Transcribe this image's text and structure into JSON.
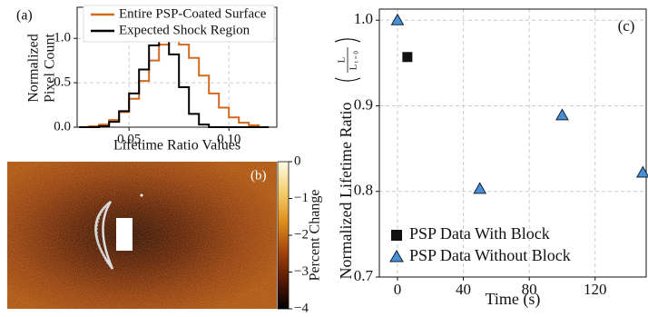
{
  "chart_data": [
    {
      "type": "line",
      "step": true,
      "panel_label": "(a)",
      "xlabel": "Lifetime Ratio Values",
      "ylabel": [
        "Normalized",
        "Pixel Count"
      ],
      "x": [
        0.025,
        0.03,
        0.035,
        0.04,
        0.045,
        0.05,
        0.055,
        0.06,
        0.065,
        0.07,
        0.075,
        0.08,
        0.085,
        0.09,
        0.095,
        0.1,
        0.105,
        0.11,
        0.115,
        0.12
      ],
      "series": [
        {
          "name": "Entire PSP-Coated Surface",
          "color": "#d2691e",
          "values": [
            0,
            0.01,
            0.03,
            0.08,
            0.17,
            0.32,
            0.52,
            0.75,
            0.93,
            1.0,
            0.93,
            0.78,
            0.58,
            0.38,
            0.22,
            0.11,
            0.05,
            0.02,
            0,
            0
          ]
        },
        {
          "name": "Expected Shock Region",
          "color": "#000000",
          "values": [
            0,
            0,
            0.01,
            0.06,
            0.18,
            0.38,
            0.65,
            0.92,
            1.0,
            0.82,
            0.45,
            0.15,
            0.03,
            0,
            0,
            0,
            0,
            0,
            0,
            0
          ]
        }
      ],
      "xlim": [
        0.024,
        0.124
      ],
      "xticks": [
        0.05,
        {
          "value": 0.1,
          "label": "0.10"
        }
      ],
      "ylim": [
        0,
        1.35
      ],
      "yticks": [
        {
          "value": 0,
          "label": "0.0"
        },
        0.5,
        {
          "value": 1,
          "label": "1.0"
        }
      ],
      "grid": true,
      "legend": "top"
    },
    {
      "type": "heatmap",
      "panel_label": "(b)",
      "colorbar_label": "Percent Change",
      "clim": [
        -4,
        0
      ],
      "cticks": [
        {
          "value": -4,
          "label": "−4"
        },
        {
          "value": -3,
          "label": "−3"
        },
        {
          "value": -2,
          "label": "−2"
        },
        {
          "value": -1,
          "label": "−1"
        },
        0
      ],
      "colormap": [
        "#000000",
        "#5a1a02",
        "#a8480c",
        "#e0901f",
        "#f6d070",
        "#fffbe8"
      ]
    },
    {
      "type": "scatter",
      "panel_label": "(c)",
      "xlabel": "Time (s)",
      "ylabel": "Normalized Lifetime Ratio",
      "ylabel_fraction": {
        "numerator": "L",
        "denominator": "L",
        "subscript": "t = 0"
      },
      "series": [
        {
          "name": "PSP Data With Block",
          "color": "#111111",
          "marker": "square",
          "x": [
            6
          ],
          "values": [
            0.957
          ]
        },
        {
          "name": "PSP Data Without Block",
          "color": "#4a8fd4",
          "marker": "triangle",
          "x": [
            0,
            50,
            100,
            149
          ],
          "values": [
            1.0,
            0.803,
            0.889,
            0.822
          ]
        }
      ],
      "xlim": [
        -11,
        151
      ],
      "xticks": [
        0,
        40,
        80,
        120
      ],
      "ylim": [
        0.7,
        1.013
      ],
      "yticks": [
        0.7,
        0.8,
        0.9,
        {
          "value": 1,
          "label": "1.0"
        }
      ],
      "grid": true,
      "legend": "lower left"
    }
  ]
}
